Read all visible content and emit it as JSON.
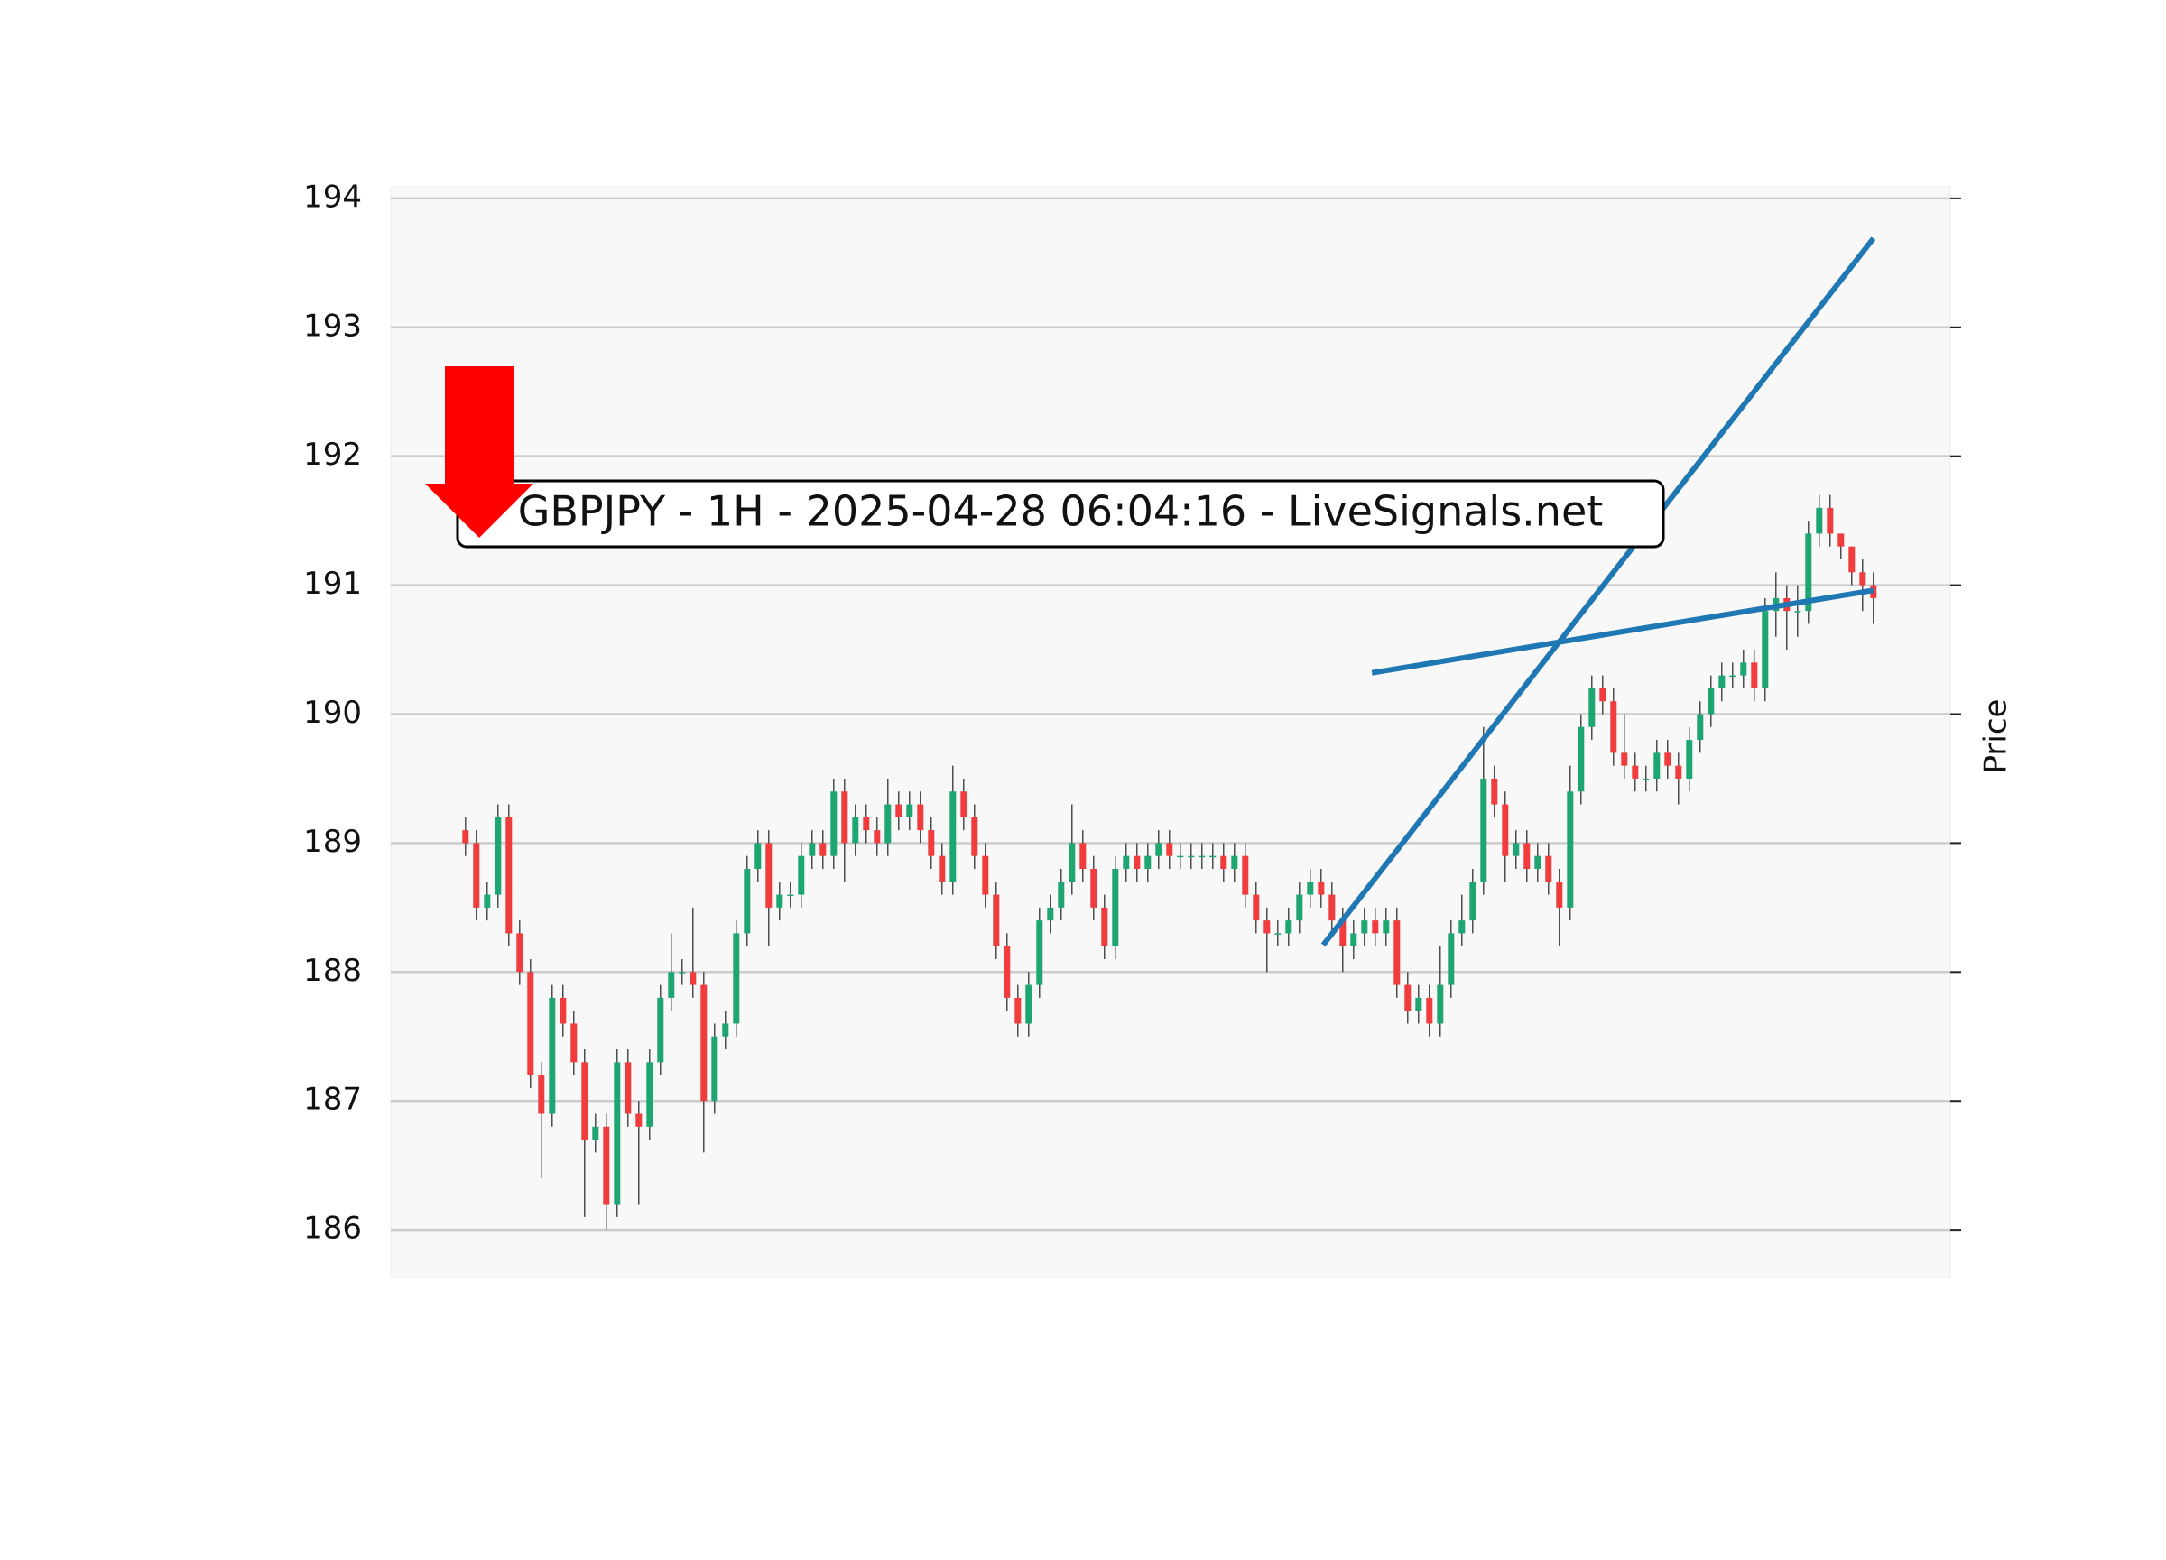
{
  "chart_data": {
    "type": "candlestick",
    "title": "GBPJPY - 1H - 2025-04-28 06:04:16 - LiveSignals.net",
    "ylabel": "Price",
    "up_color": "#1ea672",
    "down_color": "#f03c3c",
    "grid": true,
    "ylim": [
      185.63,
      194.09
    ],
    "yticks": [
      186,
      187,
      188,
      189,
      190,
      191,
      192,
      193,
      194
    ],
    "xlim": [
      -6.9,
      137.1
    ],
    "open": [
      189.1,
      189.0,
      188.5,
      188.6,
      189.2,
      188.3,
      188.0,
      187.2,
      186.9,
      187.8,
      187.6,
      187.3,
      186.7,
      186.8,
      186.2,
      187.3,
      186.9,
      186.8,
      187.3,
      187.8,
      188.0,
      188.0,
      187.9,
      187.0,
      187.5,
      187.6,
      188.3,
      188.8,
      189.0,
      188.5,
      188.6,
      188.6,
      188.9,
      189.0,
      188.9,
      189.4,
      189.0,
      189.2,
      189.1,
      189.0,
      189.3,
      189.2,
      189.3,
      189.1,
      188.9,
      188.7,
      189.4,
      189.2,
      188.9,
      188.6,
      188.2,
      187.8,
      187.6,
      187.9,
      188.4,
      188.5,
      188.7,
      189.0,
      188.8,
      188.5,
      188.2,
      188.8,
      188.9,
      188.8,
      188.9,
      189.0,
      188.9,
      188.9,
      188.9,
      188.9,
      188.9,
      188.8,
      188.9,
      188.6,
      188.4,
      188.3,
      188.3,
      188.4,
      188.6,
      188.7,
      188.6,
      188.4,
      188.2,
      188.3,
      188.4,
      188.3,
      188.4,
      187.9,
      187.7,
      187.8,
      187.6,
      187.9,
      188.3,
      188.4,
      188.7,
      189.5,
      189.3,
      188.9,
      189.0,
      188.8,
      188.9,
      188.7,
      188.5,
      189.4,
      189.9,
      190.2,
      190.1,
      189.7,
      189.6,
      189.5,
      189.5,
      189.7,
      189.6,
      189.5,
      189.8,
      190.0,
      190.2,
      190.3,
      190.3,
      190.4,
      190.2,
      190.8,
      190.9,
      190.8,
      190.8,
      191.4,
      191.6,
      191.4,
      191.3,
      191.1,
      191.0
    ],
    "high": [
      189.2,
      189.1,
      188.7,
      189.3,
      189.3,
      188.4,
      188.1,
      187.3,
      187.9,
      187.9,
      187.7,
      187.4,
      186.9,
      186.9,
      187.4,
      187.4,
      187.0,
      187.4,
      187.9,
      188.3,
      188.1,
      188.5,
      188.0,
      187.6,
      187.7,
      188.4,
      188.9,
      189.1,
      189.1,
      188.7,
      188.7,
      189.0,
      189.1,
      189.1,
      189.5,
      189.5,
      189.3,
      189.3,
      189.2,
      189.5,
      189.4,
      189.4,
      189.4,
      189.2,
      189.0,
      189.6,
      189.5,
      189.3,
      189.0,
      188.7,
      188.3,
      187.9,
      188.0,
      188.5,
      188.6,
      188.8,
      189.3,
      189.1,
      188.9,
      188.6,
      188.9,
      189.0,
      189.0,
      189.0,
      189.1,
      189.1,
      189.0,
      189.0,
      189.0,
      189.0,
      189.0,
      189.0,
      189.0,
      188.7,
      188.5,
      188.4,
      188.5,
      188.7,
      188.8,
      188.8,
      188.7,
      188.5,
      188.4,
      188.5,
      188.5,
      188.5,
      188.5,
      188.0,
      187.9,
      187.9,
      188.2,
      188.4,
      188.6,
      188.8,
      189.9,
      189.6,
      189.4,
      189.1,
      189.1,
      189.0,
      189.0,
      188.8,
      189.6,
      190.0,
      190.3,
      190.3,
      190.2,
      190.0,
      189.7,
      189.6,
      189.8,
      189.8,
      189.7,
      189.9,
      190.1,
      190.3,
      190.4,
      190.4,
      190.5,
      190.5,
      190.9,
      191.1,
      191.0,
      191.0,
      191.5,
      191.7,
      191.7,
      191.4,
      191.3,
      191.2,
      191.1
    ],
    "low": [
      188.9,
      188.4,
      188.4,
      188.5,
      188.2,
      187.9,
      187.1,
      186.4,
      186.8,
      187.5,
      187.2,
      186.1,
      186.6,
      186.0,
      186.1,
      186.8,
      186.2,
      186.7,
      187.2,
      187.7,
      187.9,
      187.8,
      186.6,
      186.9,
      187.4,
      187.5,
      188.2,
      188.7,
      188.2,
      188.4,
      188.5,
      188.5,
      188.8,
      188.8,
      188.8,
      188.7,
      188.9,
      189.0,
      188.9,
      188.9,
      189.1,
      189.1,
      189.0,
      188.8,
      188.6,
      188.6,
      189.1,
      188.8,
      188.5,
      188.1,
      187.7,
      187.5,
      187.5,
      187.8,
      188.3,
      188.4,
      188.6,
      188.7,
      188.4,
      188.1,
      188.1,
      188.7,
      188.7,
      188.7,
      188.8,
      188.8,
      188.8,
      188.8,
      188.8,
      188.8,
      188.7,
      188.7,
      188.5,
      188.3,
      188.0,
      188.2,
      188.2,
      188.3,
      188.5,
      188.5,
      188.3,
      188.0,
      188.1,
      188.2,
      188.2,
      188.2,
      187.8,
      187.6,
      187.6,
      187.5,
      187.5,
      187.8,
      188.2,
      188.3,
      188.6,
      189.2,
      188.7,
      188.8,
      188.7,
      188.7,
      188.6,
      188.2,
      188.4,
      189.3,
      189.8,
      190.0,
      189.6,
      189.5,
      189.4,
      189.4,
      189.4,
      189.5,
      189.3,
      189.4,
      189.7,
      189.9,
      190.1,
      190.2,
      190.2,
      190.1,
      190.1,
      190.6,
      190.5,
      190.6,
      190.7,
      191.3,
      191.3,
      191.2,
      191.0,
      190.8,
      190.7
    ],
    "close": [
      189.0,
      188.5,
      188.6,
      189.2,
      188.3,
      188.0,
      187.2,
      186.9,
      187.8,
      187.6,
      187.3,
      186.7,
      186.8,
      186.2,
      187.3,
      186.9,
      186.8,
      187.3,
      187.8,
      188.0,
      188.0,
      187.9,
      187.0,
      187.5,
      187.6,
      188.3,
      188.8,
      189.0,
      188.5,
      188.6,
      188.6,
      188.9,
      189.0,
      188.9,
      189.4,
      189.0,
      189.2,
      189.1,
      189.0,
      189.3,
      189.2,
      189.3,
      189.1,
      188.9,
      188.7,
      189.4,
      189.2,
      188.9,
      188.6,
      188.2,
      187.8,
      187.6,
      187.9,
      188.4,
      188.5,
      188.7,
      189.0,
      188.8,
      188.5,
      188.2,
      188.8,
      188.9,
      188.8,
      188.9,
      189.0,
      188.9,
      188.9,
      188.9,
      188.9,
      188.9,
      188.8,
      188.9,
      188.6,
      188.4,
      188.3,
      188.3,
      188.4,
      188.6,
      188.7,
      188.6,
      188.4,
      188.2,
      188.3,
      188.4,
      188.3,
      188.4,
      187.9,
      187.7,
      187.8,
      187.6,
      187.9,
      188.3,
      188.4,
      188.7,
      189.5,
      189.3,
      188.9,
      189.0,
      188.8,
      188.9,
      188.7,
      188.5,
      189.4,
      189.9,
      190.2,
      190.1,
      189.7,
      189.6,
      189.5,
      189.5,
      189.7,
      189.6,
      189.5,
      189.8,
      190.0,
      190.2,
      190.3,
      190.3,
      190.4,
      190.2,
      190.8,
      190.9,
      190.8,
      190.8,
      191.4,
      191.6,
      191.4,
      191.3,
      191.1,
      191.0,
      190.9
    ],
    "trendlines": [
      {
        "x": [
          79.2,
          130
        ],
        "y": [
          188.21,
          193.69
        ],
        "color": "#1f77b4"
      },
      {
        "x": [
          83.7,
          130
        ],
        "y": [
          190.32,
          190.96
        ],
        "color": "#1f77b4"
      }
    ]
  }
}
